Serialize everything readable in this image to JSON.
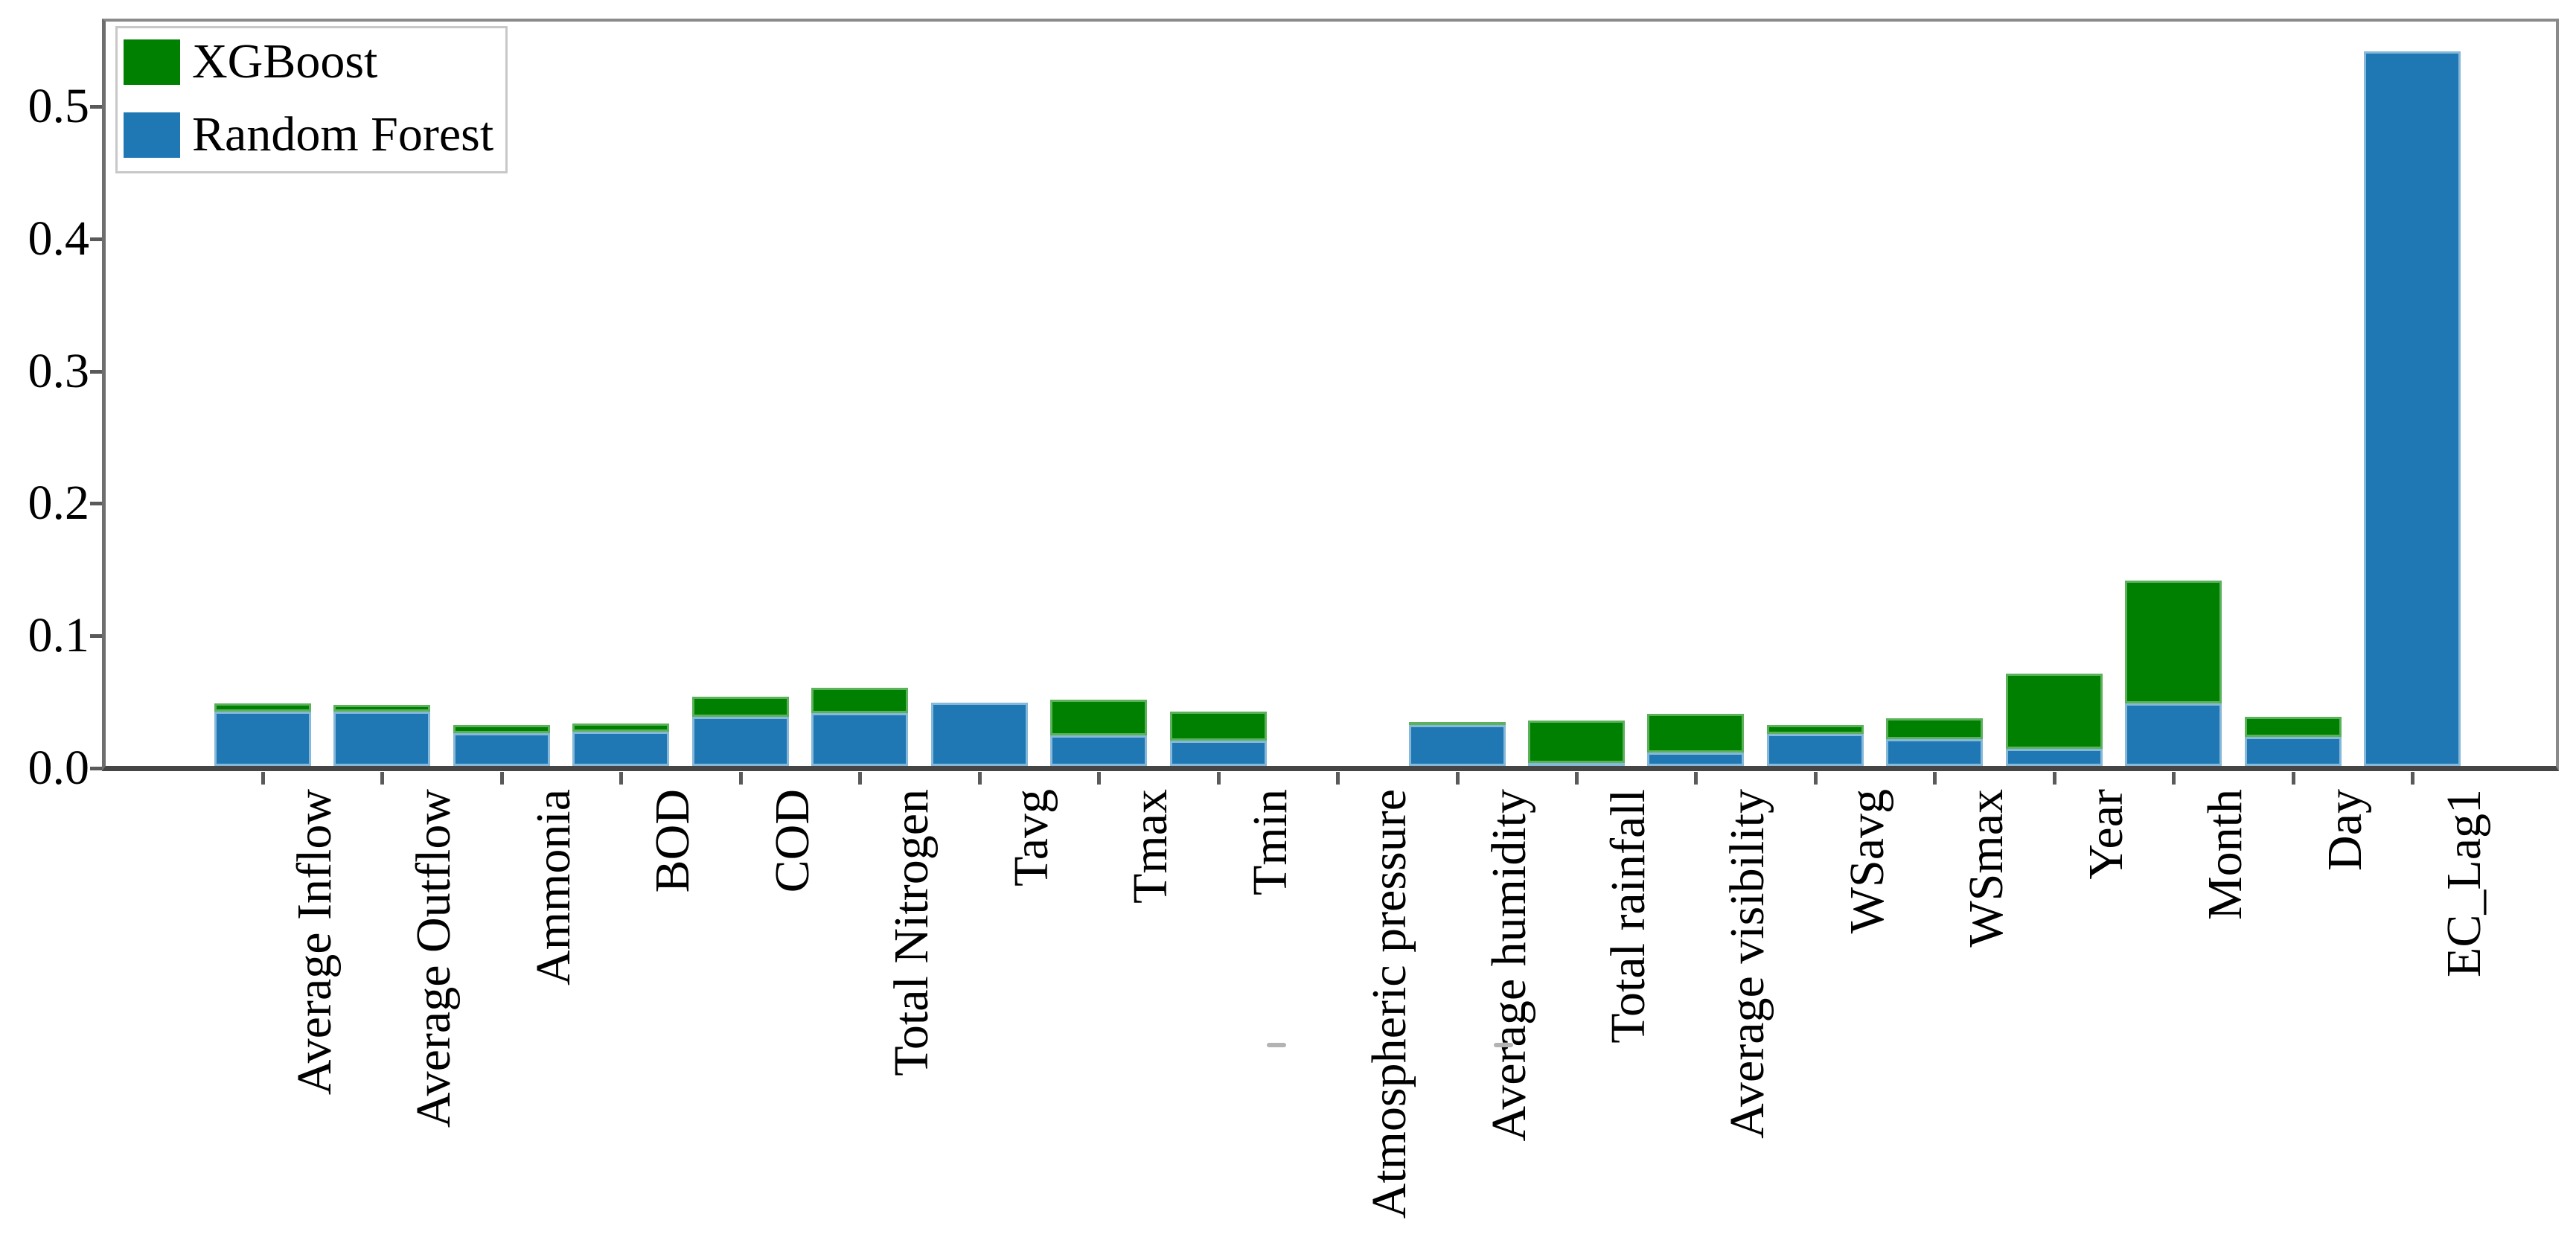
{
  "chart_data": {
    "type": "bar",
    "stacked": true,
    "title": "",
    "xlabel": "",
    "ylabel": "",
    "categories": [
      "Average Inflow",
      "Average Outflow",
      "Ammonia",
      "BOD",
      "COD",
      "Total Nitrogen",
      "Tavg",
      "Tmax",
      "Tmin",
      "Atmospheric pressure",
      "Average humidity",
      "Total rainfall",
      "Average visibility",
      "WSavg",
      "WSmax",
      "Year",
      "Month",
      "Day",
      "EC_Lag1"
    ],
    "series": [
      {
        "name": "XGBoost",
        "color": "#008000",
        "edge_color": "#8ccd8c",
        "stack_position": "top",
        "values": [
          0.006,
          0.005,
          0.006,
          0.006,
          0.015,
          0.019,
          0.0,
          0.027,
          0.022,
          0.0,
          0.002,
          0.032,
          0.029,
          0.007,
          0.016,
          0.057,
          0.093,
          0.015,
          0.0
        ]
      },
      {
        "name": "Random Forest",
        "color": "#1f77b4",
        "edge_color": "#aacde6",
        "stack_position": "bottom",
        "values": [
          0.041,
          0.041,
          0.025,
          0.026,
          0.037,
          0.04,
          0.048,
          0.023,
          0.019,
          0.0,
          0.031,
          0.002,
          0.01,
          0.024,
          0.02,
          0.013,
          0.047,
          0.022,
          0.54
        ]
      }
    ],
    "yticks": [
      "0.0",
      "0.1",
      "0.2",
      "0.3",
      "0.4",
      "0.5"
    ],
    "ylim": [
      0,
      0.566
    ],
    "grid": false,
    "legend_position": "upper-left",
    "x_label_rotation": 90
  }
}
